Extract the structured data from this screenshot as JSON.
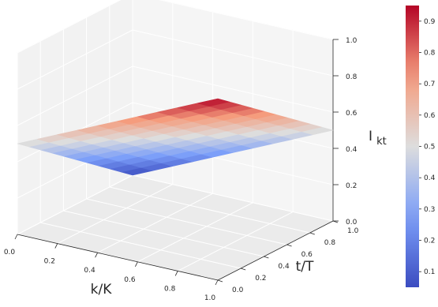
{
  "chart_data": {
    "type": "surface3d",
    "title": "",
    "xlabel": "k/K",
    "ylabel": "t/T",
    "zlabel_main": "I",
    "zlabel_sub": "kt",
    "colormap": "coolwarm",
    "xlim": [
      0,
      1
    ],
    "ylim": [
      0,
      1
    ],
    "zlim": [
      0,
      1
    ],
    "x_ticks": [
      "0.0",
      "0.2",
      "0.4",
      "0.6",
      "0.8",
      "1.0"
    ],
    "y_ticks": [
      "0.0",
      "0.2",
      "0.4",
      "0.6",
      "0.8",
      "1.0"
    ],
    "z_ticks": [
      "0.0",
      "0.2",
      "0.4",
      "0.6",
      "0.8",
      "1.0"
    ],
    "colorbar": {
      "range": [
        0.05,
        0.95
      ],
      "ticks": [
        "0.1",
        "0.2",
        "0.3",
        "0.4",
        "0.5",
        "0.6",
        "0.7",
        "0.8",
        "0.9"
      ]
    },
    "grid": true,
    "surface": {
      "x": [
        0.0,
        0.1,
        0.2,
        0.3,
        0.4,
        0.5,
        0.6,
        0.7,
        0.8,
        0.9,
        1.0
      ],
      "y": [
        0.0,
        0.1,
        0.2,
        0.3,
        0.4,
        0.5,
        0.6,
        0.7,
        0.8,
        0.9,
        1.0
      ],
      "z": [
        [
          0.5,
          0.55,
          0.6,
          0.65,
          0.7,
          0.75,
          0.8,
          0.85,
          0.9,
          0.95,
          1.0
        ],
        [
          0.45,
          0.5,
          0.55,
          0.6,
          0.65,
          0.7,
          0.75,
          0.8,
          0.85,
          0.9,
          0.95
        ],
        [
          0.4,
          0.45,
          0.5,
          0.55,
          0.6,
          0.65,
          0.7,
          0.75,
          0.8,
          0.85,
          0.9
        ],
        [
          0.35,
          0.4,
          0.45,
          0.5,
          0.55,
          0.6,
          0.65,
          0.7,
          0.75,
          0.8,
          0.85
        ],
        [
          0.3,
          0.35,
          0.4,
          0.45,
          0.5,
          0.55,
          0.6,
          0.65,
          0.7,
          0.75,
          0.8
        ],
        [
          0.25,
          0.3,
          0.35,
          0.4,
          0.45,
          0.5,
          0.55,
          0.6,
          0.65,
          0.7,
          0.75
        ],
        [
          0.2,
          0.25,
          0.3,
          0.35,
          0.4,
          0.45,
          0.5,
          0.55,
          0.6,
          0.65,
          0.7
        ],
        [
          0.15,
          0.2,
          0.25,
          0.3,
          0.35,
          0.4,
          0.45,
          0.5,
          0.55,
          0.6,
          0.65
        ],
        [
          0.1,
          0.15,
          0.2,
          0.25,
          0.3,
          0.35,
          0.4,
          0.45,
          0.5,
          0.55,
          0.6
        ],
        [
          0.05,
          0.1,
          0.15,
          0.2,
          0.25,
          0.3,
          0.35,
          0.4,
          0.45,
          0.5,
          0.55
        ],
        [
          0.0,
          0.05,
          0.1,
          0.15,
          0.2,
          0.25,
          0.3,
          0.35,
          0.4,
          0.45,
          0.5
        ]
      ]
    }
  }
}
